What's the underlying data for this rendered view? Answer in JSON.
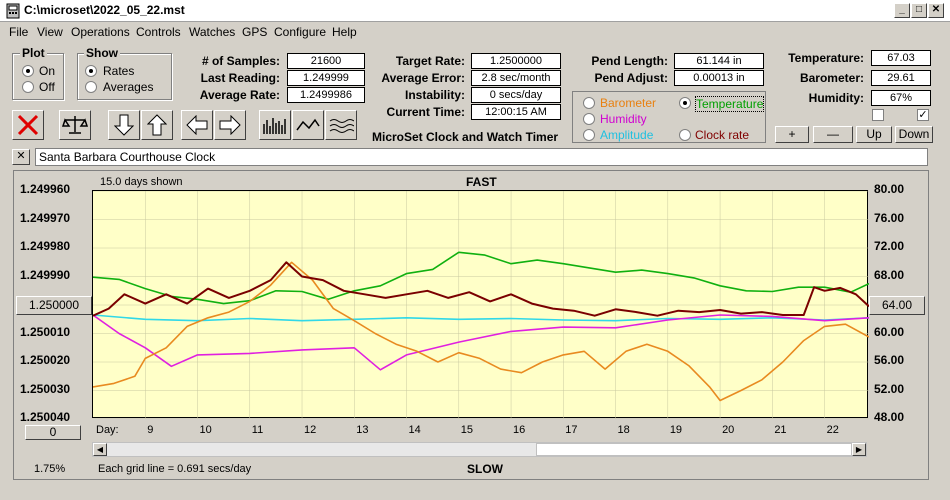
{
  "window": {
    "title": "C:\\microset\\2022_05_22.mst"
  },
  "menu": [
    "File",
    "View",
    "Operations",
    "Controls",
    "Watches",
    "GPS",
    "Configure",
    "Help"
  ],
  "plot_group": {
    "label": "Plot",
    "on": "On",
    "off": "Off",
    "selected": "On"
  },
  "show_group": {
    "label": "Show",
    "rates": "Rates",
    "averages": "Averages",
    "selected": "Rates"
  },
  "stats": {
    "samples_label": "# of Samples:",
    "samples": "21600",
    "last_label": "Last Reading:",
    "last": "1.249999",
    "avg_rate_label": "Average Rate:",
    "avg_rate": "1.2499986",
    "target_label": "Target Rate:",
    "target": "1.2500000",
    "avg_err_label": "Average Error:",
    "avg_err": "2.8 sec/month",
    "instab_label": "Instability:",
    "instab": "0 secs/day",
    "time_label": "Current Time:",
    "time": "12:00:15 AM",
    "app_name": "MicroSet Clock and Watch Timer",
    "pend_len_label": "Pend Length:",
    "pend_len": "61.144 in",
    "pend_adj_label": "Pend Adjust:",
    "pend_adj": "0.00013 in",
    "temp_label": "Temperature:",
    "temp": "67.03",
    "baro_label": "Barometer:",
    "baro": "29.61",
    "hum_label": "Humidity:",
    "hum": "67%"
  },
  "sensors": {
    "barometer": "Barometer",
    "temperature": "Temperature",
    "humidity": "Humidity",
    "amplitude": "Amplitude",
    "clock_rate": "Clock rate",
    "selected": "Temperature",
    "colors": {
      "barometer": "#e88010",
      "temperature": "#00a000",
      "humidity": "#d000d0",
      "amplitude": "#20c0e0",
      "clock_rate": "#800000"
    }
  },
  "adjust_buttons": {
    "plus": "+",
    "minus": "—",
    "up": "Up",
    "down": "Down"
  },
  "clock_name": "Santa Barbara Courthouse Clock",
  "close_x": "✕",
  "chart_data": {
    "type": "line",
    "top_label": "FAST",
    "bottom_label": "SLOW",
    "days_shown": "15.0 days shown",
    "grid_note": "Each grid line = 0.691 secs/day",
    "day_label": "Day:",
    "zoom_value": "0",
    "percent": "1.75%",
    "center_value": "1.250000",
    "right_center_value": "64.00",
    "left_ticks": [
      "1.249960",
      "1.249970",
      "1.249980",
      "1.249990",
      "1.250000",
      "1.250010",
      "1.250020",
      "1.250030",
      "1.250040"
    ],
    "right_ticks": [
      "80.00",
      "76.00",
      "72.00",
      "68.00",
      "64.00",
      "60.00",
      "56.00",
      "52.00",
      "48.00"
    ],
    "x_days": [
      "9",
      "10",
      "11",
      "12",
      "13",
      "14",
      "15",
      "16",
      "17",
      "18",
      "19",
      "20",
      "21",
      "22"
    ],
    "x_range": [
      8.0,
      22.85
    ],
    "temp_range": [
      48,
      80
    ],
    "rate_range": [
      1.24996,
      1.25004
    ],
    "series": [
      {
        "key": "temperature",
        "color": "#10b010",
        "x": [
          8.0,
          8.5,
          9.0,
          9.5,
          10.0,
          10.5,
          11.0,
          11.5,
          12.0,
          12.5,
          13.0,
          13.5,
          14.0,
          14.5,
          15.0,
          15.5,
          16.0,
          16.5,
          17.0,
          17.5,
          18.0,
          18.5,
          19.0,
          19.5,
          20.0,
          20.5,
          21.0,
          21.5,
          22.0,
          22.5,
          22.85
        ],
        "y": [
          67.9,
          67.6,
          66.3,
          65.2,
          64.8,
          64.2,
          64.6,
          66.0,
          65.9,
          64.8,
          66.0,
          66.7,
          68.4,
          69.0,
          71.4,
          71.0,
          69.8,
          70.3,
          69.8,
          69.2,
          68.6,
          68.9,
          68.4,
          67.8,
          66.7,
          66.0,
          65.9,
          66.5,
          66.5,
          65.8,
          67.0
        ]
      },
      {
        "key": "amplitude",
        "color": "#30d8e8",
        "x": [
          8.0,
          9.0,
          10.0,
          11.0,
          12.0,
          13.0,
          14.0,
          15.0,
          16.0,
          17.0,
          18.0,
          19.0,
          20.0,
          21.0,
          22.0,
          22.85
        ],
        "y": [
          62.6,
          62.0,
          61.8,
          62.1,
          61.8,
          62.0,
          62.2,
          62.0,
          62.1,
          61.9,
          61.8,
          62.1,
          62.0,
          62.2,
          61.9,
          62.2
        ]
      },
      {
        "key": "humidity",
        "color": "#e020e0",
        "x": [
          8.0,
          8.5,
          9.0,
          9.5,
          10.0,
          11.0,
          12.0,
          13.0,
          13.5,
          14.0,
          15.0,
          16.0,
          17.0,
          18.0,
          19.0,
          20.0,
          21.0,
          22.0,
          22.85
        ],
        "y": [
          62.6,
          60.0,
          58.0,
          55.4,
          57.0,
          57.2,
          57.7,
          58.0,
          54.9,
          57.0,
          58.8,
          60.3,
          60.9,
          60.8,
          61.9,
          62.6,
          62.4,
          61.8,
          62.2
        ]
      },
      {
        "key": "barometer",
        "color": "#e88a20",
        "x": [
          8.0,
          8.4,
          8.8,
          9.0,
          9.4,
          9.8,
          10.2,
          10.6,
          11.0,
          11.4,
          11.8,
          12.2,
          12.6,
          13.0,
          13.4,
          13.8,
          14.2,
          14.6,
          15.0,
          15.4,
          15.8,
          16.2,
          16.6,
          17.0,
          17.4,
          17.8,
          18.2,
          18.6,
          19.0,
          19.4,
          19.8,
          20.0,
          20.4,
          20.8,
          21.2,
          21.6,
          22.0,
          22.4,
          22.85
        ],
        "y": [
          52.5,
          53.0,
          54.0,
          56.5,
          58.0,
          61.0,
          62.2,
          63.0,
          64.5,
          66.8,
          70.0,
          67.5,
          63.5,
          61.8,
          60.0,
          58.5,
          57.5,
          56.0,
          57.3,
          56.5,
          55.0,
          54.5,
          56.0,
          57.0,
          57.5,
          55.0,
          57.5,
          58.5,
          57.5,
          55.5,
          52.5,
          50.6,
          52.0,
          53.5,
          56.0,
          59.0,
          61.0,
          61.3,
          59.5
        ]
      },
      {
        "key": "clock_rate",
        "color": "#7a0000",
        "x": [
          8.0,
          8.3,
          8.6,
          9.0,
          9.4,
          9.8,
          10.2,
          10.6,
          11.0,
          11.4,
          11.7,
          12.0,
          12.4,
          12.8,
          13.2,
          13.6,
          14.0,
          14.4,
          14.8,
          15.2,
          15.6,
          16.0,
          16.4,
          16.8,
          17.2,
          17.6,
          18.0,
          18.4,
          18.8,
          19.2,
          19.6,
          20.0,
          20.4,
          20.8,
          21.2,
          21.6,
          21.8,
          22.0,
          22.3,
          22.6,
          22.85
        ],
        "y": [
          62.5,
          63.5,
          65.5,
          64.2,
          65.5,
          64.2,
          66.3,
          65.0,
          66.0,
          67.5,
          70.0,
          68.0,
          67.5,
          66.0,
          65.5,
          65.0,
          65.5,
          66.0,
          65.0,
          65.8,
          64.5,
          65.5,
          64.2,
          63.5,
          63.2,
          62.5,
          63.4,
          63.0,
          62.5,
          63.2,
          63.0,
          63.3,
          62.8,
          63.0,
          62.6,
          62.6,
          66.5,
          66.0,
          66.4,
          65.5,
          63.8
        ]
      }
    ]
  }
}
